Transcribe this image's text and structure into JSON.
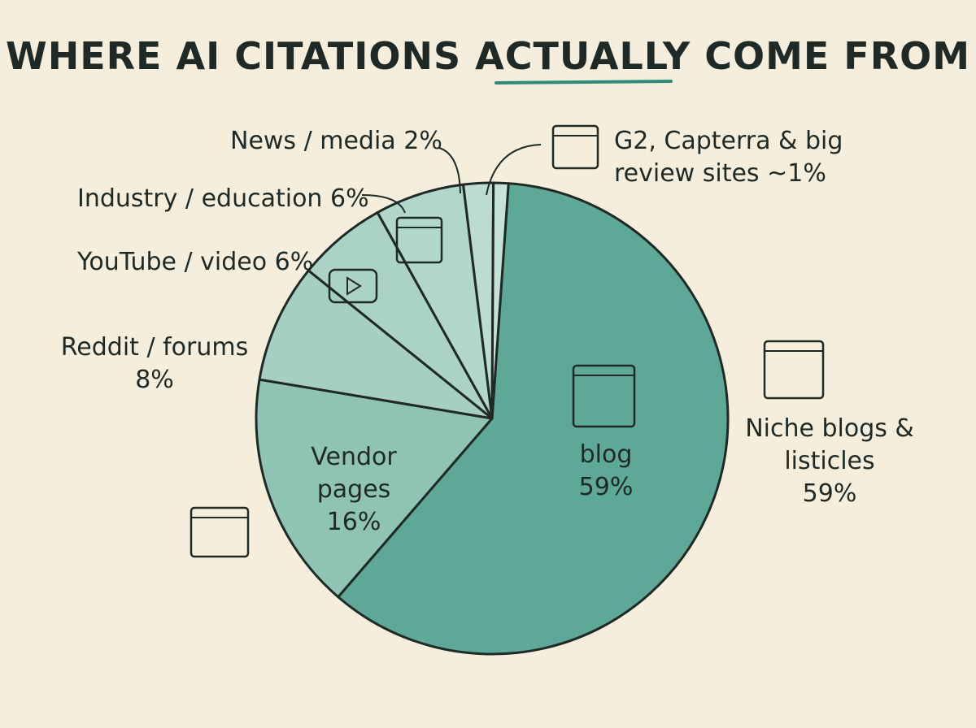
{
  "chart_data": {
    "type": "pie",
    "title": "WHERE AI CITATIONS ACTUALLY COME FROM",
    "categories": [
      "Niche blogs & listicles",
      "Vendor pages",
      "Reddit / forums",
      "YouTube / video",
      "Industry / education",
      "News / media",
      "G2, Capterra & big review sites"
    ],
    "values": [
      59,
      16,
      8,
      6,
      6,
      2,
      1
    ],
    "value_labels": [
      "59%",
      "16%",
      "8%",
      "6%",
      "6%",
      "2%",
      "~1%"
    ],
    "colors": [
      "#5ea897",
      "#8fc4b4",
      "#a4cfc2",
      "#aad3c6",
      "#b1d6ca",
      "#bcdcd1",
      "#c6e1d7"
    ],
    "annotations": [
      {
        "text": "blog"
      }
    ]
  }
}
